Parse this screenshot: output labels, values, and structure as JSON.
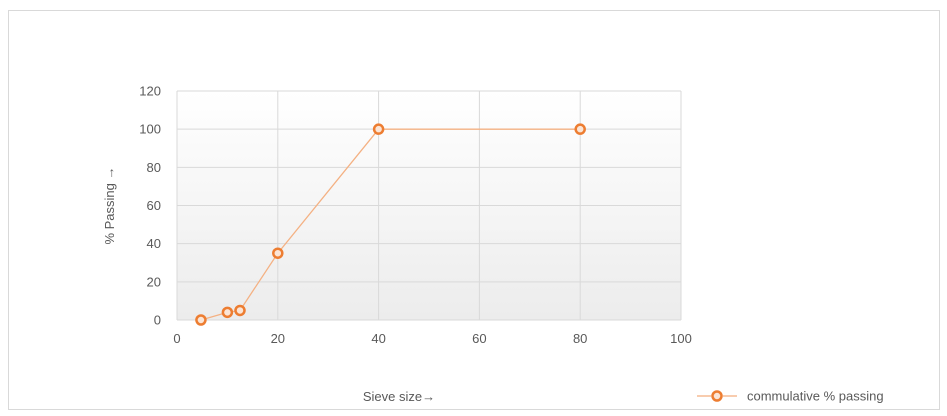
{
  "chart_data": {
    "type": "scatter",
    "title": "",
    "xlabel": "Sieve size→",
    "ylabel": "% Passing →",
    "xlim": [
      0,
      100
    ],
    "ylim": [
      0,
      120
    ],
    "xticks": [
      0,
      20,
      40,
      60,
      80,
      100
    ],
    "yticks": [
      0,
      20,
      40,
      60,
      80,
      100,
      120
    ],
    "grid": true,
    "legend_position": "bottom-right",
    "series": [
      {
        "name": "commulative % passing",
        "color": "#ed7d31",
        "marker": "circle",
        "line": "straight",
        "x": [
          4.75,
          10,
          12.5,
          20,
          40,
          80
        ],
        "y": [
          0,
          4,
          5,
          35,
          100,
          100
        ]
      }
    ]
  }
}
